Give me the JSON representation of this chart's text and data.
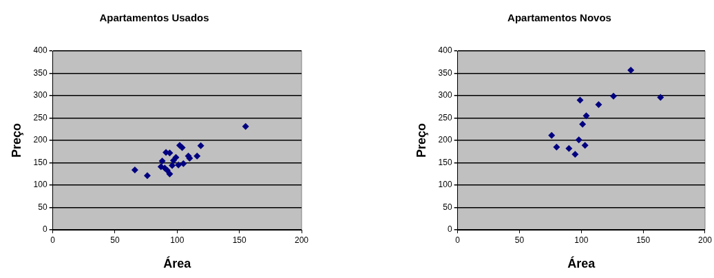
{
  "chart_data": [
    {
      "type": "scatter",
      "title": "Apartamentos Usados",
      "xlabel": "Área",
      "ylabel": "Preço",
      "color": "#000080",
      "marker": "diamond",
      "grid": "y",
      "x": [
        66,
        76,
        155,
        102,
        104,
        119,
        116,
        109,
        110,
        105,
        101,
        91,
        94,
        99,
        88,
        87,
        90,
        94,
        92,
        96,
        97
      ],
      "values": [
        134,
        121,
        231,
        189,
        184,
        188,
        165,
        165,
        160,
        148,
        145,
        173,
        172,
        162,
        154,
        141,
        138,
        125,
        133,
        144,
        155
      ],
      "xlim": [
        0,
        200
      ],
      "xticks": [
        0,
        50,
        100,
        150,
        200
      ],
      "ylim": [
        0,
        400
      ],
      "yticks": [
        0,
        50,
        100,
        150,
        200,
        250,
        300,
        350,
        400
      ]
    },
    {
      "type": "scatter",
      "title": "Apartamentos Novos",
      "xlabel": "Área",
      "ylabel": "Preço",
      "color": "#000080",
      "marker": "diamond",
      "grid": "y",
      "x": [
        76,
        80,
        90,
        95,
        98,
        103,
        99,
        101,
        104,
        114,
        126,
        140,
        164
      ],
      "values": [
        211,
        185,
        182,
        169,
        201,
        189,
        290,
        236,
        255,
        280,
        299,
        357,
        296
      ],
      "xlim": [
        0,
        200
      ],
      "xticks": [
        0,
        50,
        100,
        150,
        200
      ],
      "ylim": [
        0,
        400
      ],
      "yticks": [
        0,
        50,
        100,
        150,
        200,
        250,
        300,
        350,
        400
      ]
    }
  ]
}
